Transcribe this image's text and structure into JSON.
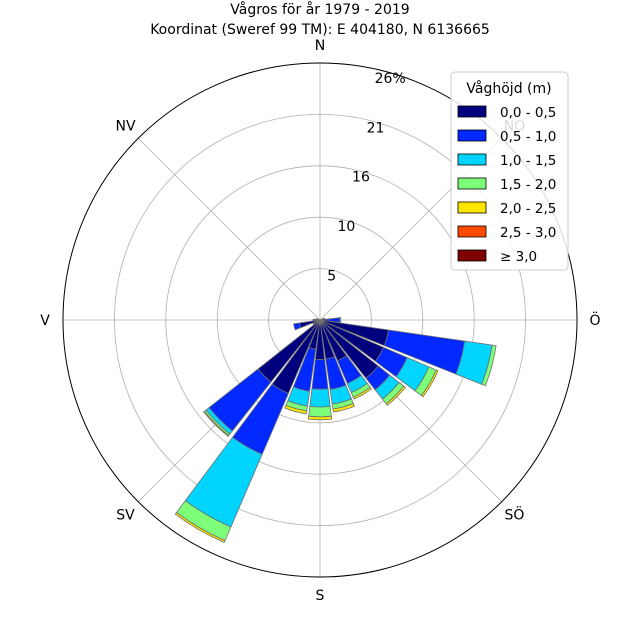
{
  "chart_data": {
    "type": "windrose",
    "title": "Vågros för år 1979 - 2019",
    "subtitle": "Koordinat (Sweref 99 TM): E 404180, N 6136665",
    "directions": [
      "N",
      "NO",
      "Ö",
      "SÖ",
      "S",
      "SV",
      "V",
      "NV"
    ],
    "radial_ticks": [
      "5",
      "10",
      "16",
      "21",
      "26%"
    ],
    "radial_max": 26,
    "legend": {
      "title": "Våghöjd (m)",
      "placement": "top-right",
      "bins": [
        {
          "label": "0,0 - 0,5",
          "color": "#00007f"
        },
        {
          "label": "0,5 - 1,0",
          "color": "#0028ff"
        },
        {
          "label": "1,0 - 1,5",
          "color": "#00d4ff"
        },
        {
          "label": "1,5 - 2,0",
          "color": "#7dff7a"
        },
        {
          "label": "2,0 - 2,5",
          "color": "#ffe600"
        },
        {
          "label": "2,5 - 3,0",
          "color": "#ff4a00"
        },
        {
          "label": "≥ 3,0",
          "color": "#7f0000"
        }
      ]
    },
    "sector_width_deg": 15,
    "sectors": [
      {
        "direction_deg": 75,
        "values": [
          0.3,
          0.2,
          0,
          0,
          0,
          0,
          0
        ]
      },
      {
        "direction_deg": 90,
        "values": [
          0.8,
          1.2,
          0.1,
          0,
          0,
          0,
          0
        ]
      },
      {
        "direction_deg": 105,
        "values": [
          7.0,
          7.8,
          2.8,
          0.4,
          0,
          0,
          0
        ]
      },
      {
        "direction_deg": 120,
        "values": [
          7.0,
          2.6,
          2.4,
          0.8,
          0.2,
          0,
          0
        ]
      },
      {
        "direction_deg": 135,
        "values": [
          7.5,
          1.5,
          1.2,
          0.6,
          0.2,
          0,
          0
        ]
      },
      {
        "direction_deg": 150,
        "values": [
          4.5,
          2.5,
          1.0,
          0.5,
          0.2,
          0,
          0
        ]
      },
      {
        "direction_deg": 165,
        "values": [
          4.0,
          3.1,
          1.5,
          0.5,
          0.3,
          0,
          0
        ]
      },
      {
        "direction_deg": 180,
        "values": [
          4.0,
          3.0,
          1.8,
          1.0,
          0.3,
          0,
          0
        ]
      },
      {
        "direction_deg": 195,
        "values": [
          3.0,
          4.3,
          1.5,
          0.5,
          0.3,
          0,
          0
        ]
      },
      {
        "direction_deg": 210,
        "values": [
          8.1,
          6.7,
          8.0,
          1.5,
          0.2,
          0,
          0
        ]
      },
      {
        "direction_deg": 225,
        "values": [
          8.0,
          6.3,
          0.4,
          0.2,
          0.1,
          0,
          0
        ]
      },
      {
        "direction_deg": 240,
        "values": [
          0.4,
          0.3,
          0.1,
          0,
          0,
          0,
          0
        ]
      },
      {
        "direction_deg": 255,
        "values": [
          2.1,
          0.6,
          0,
          0,
          0,
          0,
          0
        ]
      },
      {
        "direction_deg": 270,
        "values": [
          0.5,
          0.2,
          0,
          0,
          0,
          0,
          0
        ]
      },
      {
        "direction_deg": 285,
        "values": [
          0.3,
          0.1,
          0,
          0,
          0,
          0,
          0
        ]
      }
    ]
  }
}
